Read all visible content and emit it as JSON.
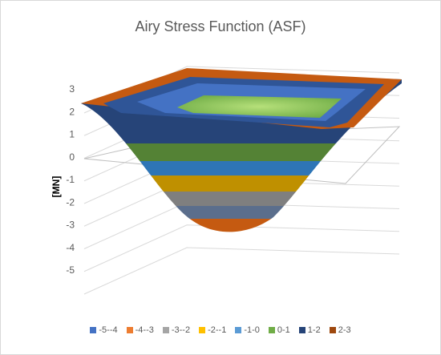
{
  "chart_data": {
    "type": "surface",
    "title": "Airy Stress Function (ASF)",
    "ylabel": "[MN]",
    "zlim": [
      -5,
      3
    ],
    "z_ticks": [
      "3",
      "2",
      "1",
      "0",
      "-1",
      "-2",
      "-3",
      "-4",
      "-5"
    ],
    "surface_min": -3.1,
    "surface_rim": 2.3,
    "bands": [
      {
        "name": "-5--4",
        "range": [
          -5,
          -4
        ],
        "color": "#4472C4"
      },
      {
        "name": "-4--3",
        "range": [
          -4,
          -3
        ],
        "color": "#ED7D31"
      },
      {
        "name": "-3--2",
        "range": [
          -3,
          -2
        ],
        "color": "#A5A5A5"
      },
      {
        "name": "-2--1",
        "range": [
          -2,
          -1
        ],
        "color": "#FFC000"
      },
      {
        "name": "-1-0",
        "range": [
          -1,
          0
        ],
        "color": "#5B9BD5"
      },
      {
        "name": "0-1",
        "range": [
          0,
          1
        ],
        "color": "#70AD47"
      },
      {
        "name": "1-2",
        "range": [
          1,
          2
        ],
        "color": "#264478"
      },
      {
        "name": "2-3",
        "range": [
          2,
          3
        ],
        "color": "#9E480E"
      }
    ]
  }
}
